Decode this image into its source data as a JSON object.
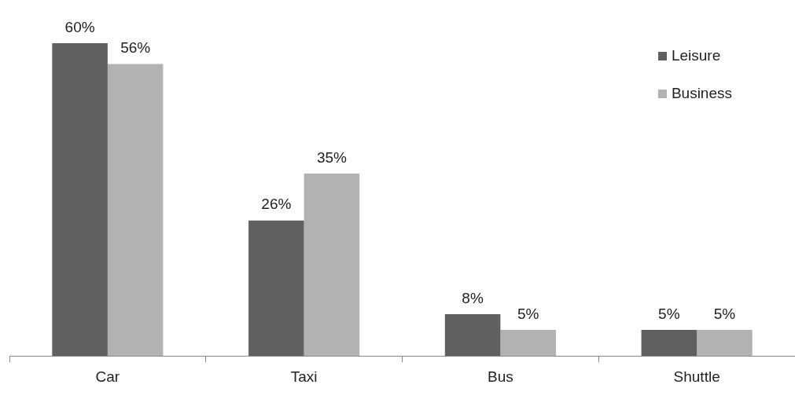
{
  "chart_data": {
    "type": "bar",
    "categories": [
      "Car",
      "Taxi",
      "Bus",
      "Shuttle"
    ],
    "series": [
      {
        "name": "Leisure",
        "color": "#606060",
        "values": [
          60,
          26,
          8,
          5
        ],
        "value_labels": [
          "60%",
          "26%",
          "8%",
          "5%"
        ]
      },
      {
        "name": "Business",
        "color": "#b2b2b2",
        "values": [
          56,
          35,
          5,
          5
        ],
        "value_labels": [
          "56%",
          "35%",
          "5%",
          "5%"
        ]
      }
    ],
    "legend": "top right",
    "grid": false
  }
}
